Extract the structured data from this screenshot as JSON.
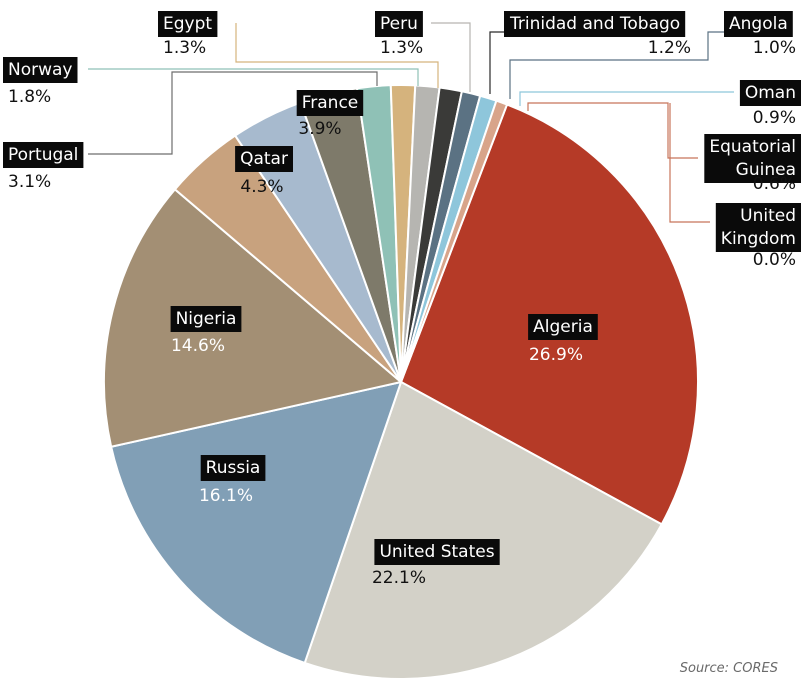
{
  "chart_data": {
    "type": "pie",
    "source": "Source: CORES",
    "slices": [
      {
        "name": "Algeria",
        "value": 26.9,
        "label": "26.9%",
        "color": "#b53a27"
      },
      {
        "name": "United States",
        "value": 22.1,
        "label": "22.1%",
        "color": "#d3d1c8"
      },
      {
        "name": "Russia",
        "value": 16.1,
        "label": "16.1%",
        "color": "#819fb6"
      },
      {
        "name": "Nigeria",
        "value": 14.6,
        "label": "14.6%",
        "color": "#a38f74"
      },
      {
        "name": "Qatar",
        "value": 4.3,
        "label": "4.3%",
        "color": "#c8a27e"
      },
      {
        "name": "France",
        "value": 3.9,
        "label": "3.9%",
        "color": "#a7bace"
      },
      {
        "name": "Portugal",
        "value": 3.1,
        "label": "3.1%",
        "color": "#7e7a6a"
      },
      {
        "name": "Norway",
        "value": 1.8,
        "label": "1.8%",
        "color": "#8fc1b6"
      },
      {
        "name": "Egypt",
        "value": 1.3,
        "label": "1.3%",
        "color": "#d5b37d"
      },
      {
        "name": "Peru",
        "value": 1.3,
        "label": "1.3%",
        "color": "#b6b5b1"
      },
      {
        "name": "Trinidad and Tobago",
        "value": 1.2,
        "label": "1.2%",
        "color": "#3a3a38"
      },
      {
        "name": "Angola",
        "value": 1.0,
        "label": "1.0%",
        "color": "#5b7283"
      },
      {
        "name": "Oman",
        "value": 0.9,
        "label": "0.9%",
        "color": "#8ec6db"
      },
      {
        "name": "Equatorial Guinea",
        "value": 0.6,
        "label": "0.6%",
        "color": "#d8a48a"
      },
      {
        "name": "United Kingdom",
        "value": 0.0,
        "label": "0.0%",
        "color": "#c04030"
      }
    ]
  }
}
